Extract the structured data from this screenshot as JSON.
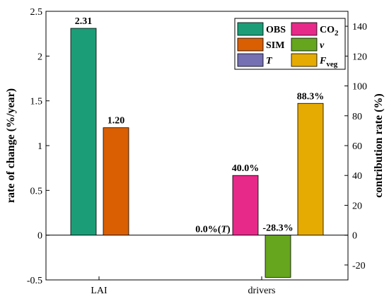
{
  "chart_data": {
    "type": "bar",
    "categories": [
      "LAI",
      "drivers"
    ],
    "left_axis": {
      "label": "rate of change (%/year)",
      "ylim": [
        -0.5,
        2.5
      ],
      "ticks": [
        -0.5,
        0,
        0.5,
        1,
        1.5,
        2,
        2.5
      ],
      "tick_labels": [
        "-0.5",
        "0",
        "0.5",
        "1",
        "1.5",
        "2",
        "2.5"
      ]
    },
    "right_axis": {
      "label": "contribution rate (%)",
      "ylim": [
        -30,
        150
      ],
      "ticks": [
        -20,
        0,
        20,
        40,
        60,
        80,
        100,
        120,
        140
      ],
      "tick_labels": [
        "-20",
        "0",
        "20",
        "40",
        "60",
        "80",
        "100",
        "120",
        "140"
      ]
    },
    "series": [
      {
        "name": "OBS",
        "category": "LAI",
        "axis": "left",
        "value": 2.31,
        "label": "2.31",
        "color": "#1b9e77"
      },
      {
        "name": "SIM",
        "category": "LAI",
        "axis": "left",
        "value": 1.2,
        "label": "1.20",
        "color": "#d95f02"
      },
      {
        "name": "T",
        "category": "drivers",
        "axis": "right",
        "value": 0.0,
        "label": "0.0%(T)",
        "color": "#7570b3"
      },
      {
        "name": "CO2",
        "category": "drivers",
        "axis": "right",
        "value": 40.0,
        "label": "40.0%",
        "color": "#e7298a"
      },
      {
        "name": "v",
        "category": "drivers",
        "axis": "right",
        "value": -28.3,
        "label": "-28.3%",
        "color": "#66a61e"
      },
      {
        "name": "Fveg",
        "category": "drivers",
        "axis": "right",
        "value": 88.3,
        "label": "88.3%",
        "color": "#e6ab02"
      }
    ],
    "legend": {
      "placement": "top-right",
      "order": [
        "OBS",
        "CO2",
        "SIM",
        "v",
        "T",
        "Fveg"
      ]
    },
    "grid": false
  }
}
